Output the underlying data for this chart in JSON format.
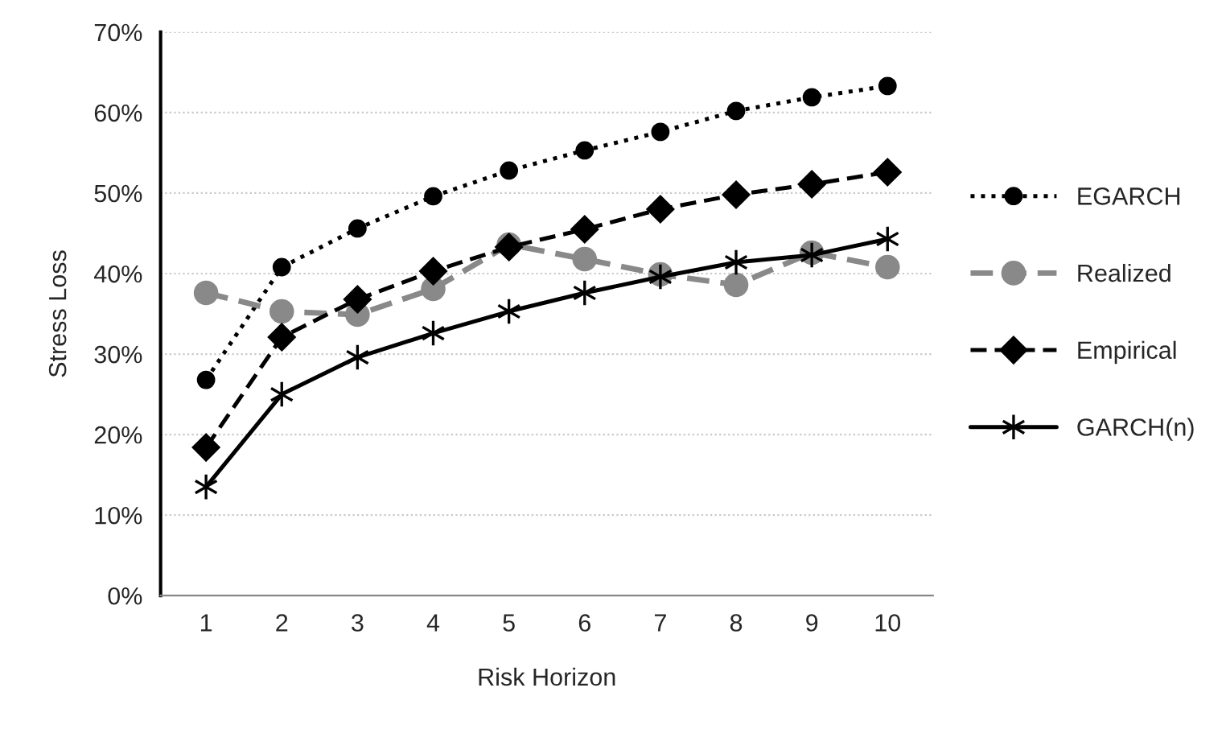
{
  "chart_data": {
    "type": "line",
    "xlabel": "Risk Horizon",
    "ylabel": "Stress Loss",
    "categories": [
      "1",
      "2",
      "3",
      "4",
      "5",
      "6",
      "7",
      "8",
      "9",
      "10"
    ],
    "series": [
      {
        "name": "EGARCH",
        "color": "#000000",
        "marker": "circle",
        "line_style": "dotted",
        "values": [
          26.8,
          40.8,
          45.6,
          49.6,
          52.8,
          55.3,
          57.6,
          60.2,
          61.9,
          63.3
        ]
      },
      {
        "name": "Realized",
        "color": "#898989",
        "marker": "circle",
        "line_style": "dashed",
        "values": [
          37.6,
          35.3,
          34.9,
          38.1,
          43.6,
          41.8,
          39.9,
          38.6,
          42.6,
          40.8
        ]
      },
      {
        "name": "Empirical",
        "color": "#000000",
        "marker": "diamond",
        "line_style": "dashed",
        "values": [
          18.4,
          32.1,
          36.8,
          40.3,
          43.3,
          45.5,
          48.0,
          49.8,
          51.1,
          52.6
        ]
      },
      {
        "name": "GARCH(n)",
        "color": "#000000",
        "marker": "cross",
        "line_style": "solid",
        "values": [
          13.5,
          25.0,
          29.6,
          32.6,
          35.3,
          37.6,
          39.6,
          41.4,
          42.3,
          44.3
        ]
      }
    ],
    "ylim": [
      0,
      70
    ],
    "yticks": [
      {
        "value": 0,
        "label": "0%"
      },
      {
        "value": 10,
        "label": "10%"
      },
      {
        "value": 20,
        "label": "20%"
      },
      {
        "value": 30,
        "label": "30%"
      },
      {
        "value": 40,
        "label": "40%"
      },
      {
        "value": 50,
        "label": "50%"
      },
      {
        "value": 60,
        "label": "60%"
      },
      {
        "value": 70,
        "label": "70%"
      }
    ],
    "grid": "y",
    "legend": "right"
  }
}
